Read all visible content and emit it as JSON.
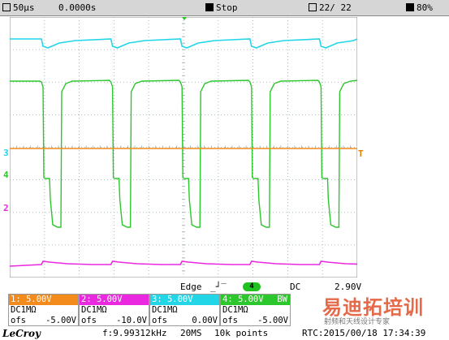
{
  "topbar": {
    "timebase": "50µs",
    "delay": "0.0000s",
    "run_state": "Stop",
    "acq_count": "22/",
    "acq_total": "22",
    "battery": "80%"
  },
  "markers": {
    "ch3": "3",
    "ch4": "4",
    "ch2": "2",
    "trig": "T"
  },
  "trigger": {
    "mode": "Edge",
    "source": "4",
    "coupling": "DC",
    "level": "2.90V"
  },
  "channels": [
    {
      "head": "1: 5.00V",
      "coupling": "DC1MΩ",
      "ofs_label": "ofs",
      "ofs": "-5.00V",
      "bw": "",
      "color": "#f28a1c"
    },
    {
      "head": "2: 5.00V",
      "coupling": "DC1MΩ",
      "ofs_label": "ofs",
      "ofs": "-10.0V",
      "bw": "",
      "color": "#ea28e0"
    },
    {
      "head": "3: 5.00V",
      "coupling": "DC1MΩ",
      "ofs_label": "ofs",
      "ofs": "0.00V",
      "bw": "",
      "color": "#22d6e8"
    },
    {
      "head": "4: 5.00V",
      "coupling": "DC1MΩ",
      "ofs_label": "ofs",
      "ofs": "-5.00V",
      "bw": "BW",
      "color": "#2cc72c"
    }
  ],
  "status": {
    "brand": "LeCroy",
    "freq": "f:9.99312kHz",
    "rate": "20MS",
    "points": "10k points",
    "rtc": "RTC:2015/00/18 17:34:39"
  },
  "watermark": {
    "title": "易迪拓培训",
    "sub": "射频和天线设计专家"
  },
  "colors": {
    "ch1": "#f28a1c",
    "ch2": "#ea28e0",
    "ch3": "#22d6e8",
    "ch4": "#2cc72c"
  }
}
